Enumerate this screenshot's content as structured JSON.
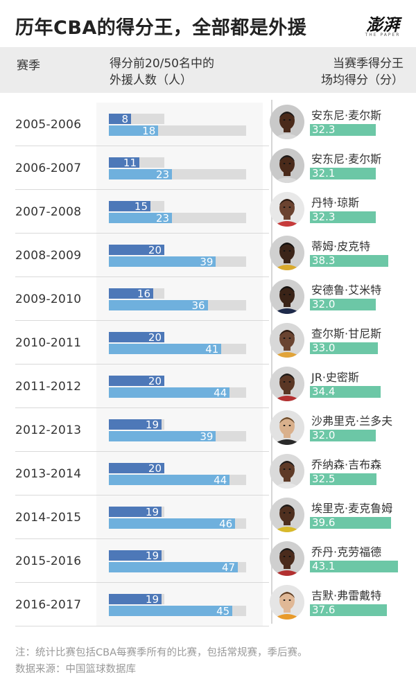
{
  "header": {
    "title": "历年CBA的得分王，全部都是外援",
    "logo_main": "澎湃",
    "logo_sub": "THE PAPER"
  },
  "columns": {
    "season": "赛季",
    "count_line1": "得分前20/50名中的",
    "count_line2": "外援人数（人）",
    "score_line1": "当赛季得分王",
    "score_line2": "场均得分（分）"
  },
  "chart_data": {
    "type": "bar",
    "categories": [
      "2005-2006",
      "2006-2007",
      "2007-2008",
      "2008-2009",
      "2009-2010",
      "2010-2011",
      "2011-2012",
      "2012-2013",
      "2013-2014",
      "2014-2015",
      "2015-2016",
      "2016-2017"
    ],
    "series": [
      {
        "values": [
          8,
          11,
          15,
          20,
          16,
          20,
          20,
          19,
          20,
          19,
          19,
          19
        ],
        "max": 20
      },
      {
        "values": [
          18,
          23,
          23,
          39,
          36,
          41,
          44,
          39,
          44,
          46,
          47,
          45
        ],
        "max": 50
      },
      {
        "values": [
          32.3,
          32.1,
          32.3,
          38.3,
          32.0,
          33.0,
          34.4,
          32.0,
          32.5,
          39.6,
          43.1,
          37.6
        ]
      }
    ],
    "players": [
      "安东尼·麦尔斯",
      "安东尼·麦尔斯",
      "丹特·琼斯",
      "蒂姆·皮克特",
      "安德鲁·艾米特",
      "查尔斯·甘尼斯",
      "JR·史密斯",
      "沙弗里克·兰多夫",
      "乔纳森·吉布森",
      "埃里克·麦克鲁姆",
      "乔丹·克劳福德",
      "吉默·弗雷戴特"
    ],
    "score_labels": [
      "32.3",
      "32.1",
      "32.3",
      "38.3",
      "32.0",
      "33.0",
      "34.4",
      "32.0",
      "32.5",
      "39.6",
      "43.1",
      "37.6"
    ]
  },
  "colors": {
    "top20": "#4d78b8",
    "top50": "#6fb0dd",
    "score": "#6cc7a6",
    "track": "#dcdcdc"
  },
  "avatars": [
    {
      "skin": "#4a2a1a",
      "hair": "#1a1a1a",
      "shirt": "#d9d9d9",
      "bg": "#c9c9c9"
    },
    {
      "skin": "#4a2a1a",
      "hair": "#1a1a1a",
      "shirt": "#d9d9d9",
      "bg": "#c9c9c9"
    },
    {
      "skin": "#6b4330",
      "hair": "#2a1a12",
      "shirt": "#c63b3b",
      "bg": "#e8e8e8"
    },
    {
      "skin": "#3b2418",
      "hair": "#111111",
      "shirt": "#d9a92c",
      "bg": "#d0d0d0"
    },
    {
      "skin": "#3a2317",
      "hair": "#111111",
      "shirt": "#1e2a4a",
      "bg": "#cfcfcf"
    },
    {
      "skin": "#6a4431",
      "hair": "#2a1a12",
      "shirt": "#e1a43a",
      "bg": "#d8d8d8"
    },
    {
      "skin": "#5a3624",
      "hair": "#1a1a1a",
      "shirt": "#b33030",
      "bg": "#d5d5d5"
    },
    {
      "skin": "#d9b08c",
      "hair": "#6b4a2a",
      "shirt": "#2a2a2a",
      "bg": "#e2e2e2"
    },
    {
      "skin": "#5e3a27",
      "hair": "#1a1a1a",
      "shirt": "#e6e6e6",
      "bg": "#dadada"
    },
    {
      "skin": "#4f2f1f",
      "hair": "#1a1a1a",
      "shirt": "#d8b92a",
      "bg": "#d3d3d3"
    },
    {
      "skin": "#4a2b1c",
      "hair": "#1a1a1a",
      "shirt": "#b23030",
      "bg": "#cfcfcf"
    },
    {
      "skin": "#e0b896",
      "hair": "#5a3b22",
      "shirt": "#e89a2a",
      "bg": "#e5e5e5"
    }
  ],
  "notes": {
    "line1": "注：统计比赛包括CBA每赛季所有的比赛，包括常规赛，季后赛。",
    "line2": "数据来源：中国篮球数据库"
  }
}
